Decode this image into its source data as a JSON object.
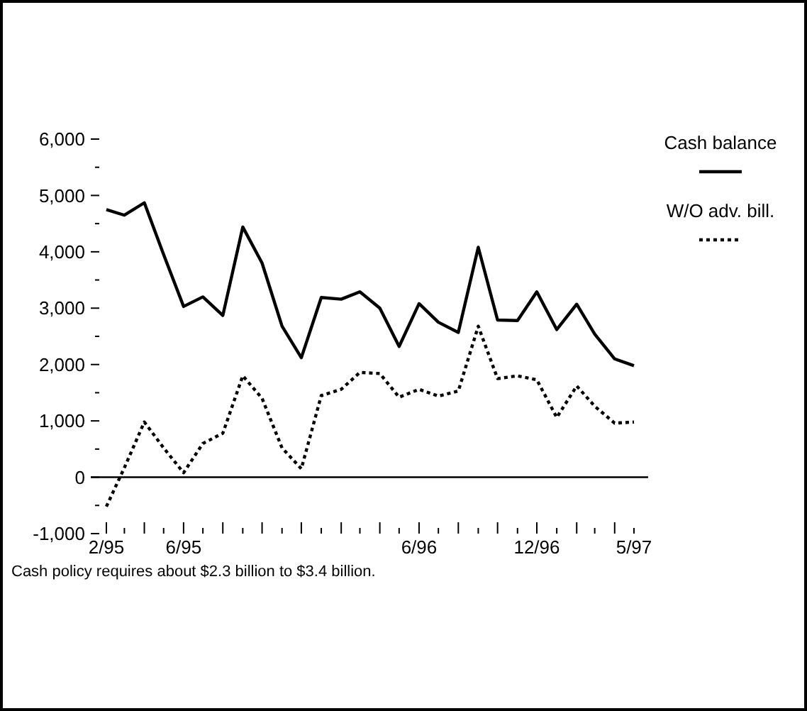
{
  "chart_data": {
    "type": "line",
    "x": [
      "1995-02",
      "1995-03",
      "1995-04",
      "1995-05",
      "1995-06",
      "1995-07",
      "1995-08",
      "1995-09",
      "1995-10",
      "1995-11",
      "1995-12",
      "1996-01",
      "1996-02",
      "1996-03",
      "1996-04",
      "1996-05",
      "1996-06",
      "1996-07",
      "1996-08",
      "1996-09",
      "1996-10",
      "1996-11",
      "1996-12",
      "1997-01",
      "1997-02",
      "1997-03",
      "1997-04",
      "1997-05"
    ],
    "series": [
      {
        "name": "Cash balance",
        "color": "#000000",
        "line_style": "solid",
        "values": [
          4750,
          4650,
          4870,
          3950,
          3030,
          3200,
          2870,
          4440,
          3800,
          2680,
          2120,
          3190,
          3160,
          3290,
          3000,
          2320,
          3080,
          2750,
          2570,
          4080,
          2790,
          2780,
          3290,
          2620,
          3070,
          2540,
          2100,
          1980
        ]
      },
      {
        "name": "W/O adv. bill.",
        "color": "#000000",
        "line_style": "dotted",
        "values": [
          -520,
          170,
          980,
          520,
          80,
          600,
          780,
          1800,
          1400,
          520,
          150,
          1450,
          1560,
          1860,
          1840,
          1420,
          1560,
          1440,
          1530,
          2680,
          1750,
          1800,
          1730,
          1060,
          1620,
          1260,
          960,
          980
        ]
      }
    ],
    "xlim": [
      "1995-02",
      "1997-05"
    ],
    "xticks": [
      {
        "value": "1995-02",
        "label": "2/95"
      },
      {
        "value": "1995-03",
        "label": null
      },
      {
        "value": "1995-04",
        "label": null
      },
      {
        "value": "1995-05",
        "label": null
      },
      {
        "value": "1995-06",
        "label": "6/95"
      },
      {
        "value": "1995-07",
        "label": null
      },
      {
        "value": "1995-08",
        "label": null
      },
      {
        "value": "1995-09",
        "label": null
      },
      {
        "value": "1995-10",
        "label": null
      },
      {
        "value": "1995-11",
        "label": null
      },
      {
        "value": "1995-12",
        "label": null
      },
      {
        "value": "1996-01",
        "label": null
      },
      {
        "value": "1996-02",
        "label": null
      },
      {
        "value": "1996-03",
        "label": null
      },
      {
        "value": "1996-04",
        "label": null
      },
      {
        "value": "1996-05",
        "label": null
      },
      {
        "value": "1996-06",
        "label": "6/96"
      },
      {
        "value": "1996-07",
        "label": null
      },
      {
        "value": "1996-08",
        "label": null
      },
      {
        "value": "1996-09",
        "label": null
      },
      {
        "value": "1996-10",
        "label": null
      },
      {
        "value": "1996-11",
        "label": null
      },
      {
        "value": "1996-12",
        "label": "12/96"
      },
      {
        "value": "1997-01",
        "label": null
      },
      {
        "value": "1997-02",
        "label": null
      },
      {
        "value": "1997-03",
        "label": null
      },
      {
        "value": "1997-04",
        "label": null
      },
      {
        "value": "1997-05",
        "label": "5/97"
      }
    ],
    "ylim": [
      -1000,
      6000
    ],
    "yticks": [
      {
        "value": -1000,
        "label": "-1,000"
      },
      {
        "value": -500,
        "label": null
      },
      {
        "value": 0,
        "label": "0"
      },
      {
        "value": 500,
        "label": null
      },
      {
        "value": 1000,
        "label": "1,000"
      },
      {
        "value": 1500,
        "label": null
      },
      {
        "value": 2000,
        "label": "2,000"
      },
      {
        "value": 2500,
        "label": null
      },
      {
        "value": 3000,
        "label": "3,000"
      },
      {
        "value": 3500,
        "label": null
      },
      {
        "value": 4000,
        "label": "4,000"
      },
      {
        "value": 4500,
        "label": null
      },
      {
        "value": 5000,
        "label": "5,000"
      },
      {
        "value": 5500,
        "label": null
      },
      {
        "value": 6000,
        "label": "6,000"
      }
    ],
    "ref_lines": [
      {
        "axis": "y",
        "value": 0,
        "color": "#000000"
      }
    ],
    "legend": "top right",
    "marker": "none",
    "grid": false,
    "annotations": [
      "Cash policy requires about $2.3 billion to $3.4 billion."
    ]
  }
}
